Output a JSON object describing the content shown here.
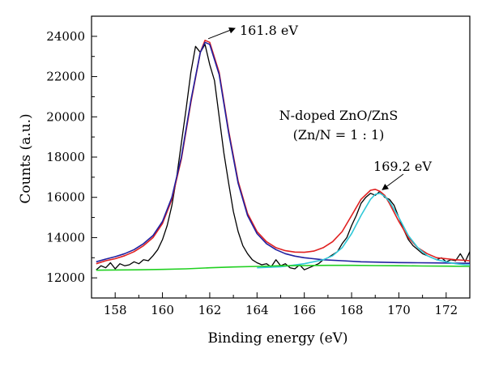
{
  "chart_data": {
    "type": "line",
    "xlabel": "Binding energy (eV)",
    "ylabel": "Counts (a.u.)",
    "xlim": [
      157,
      173
    ],
    "ylim": [
      11000,
      25000
    ],
    "x_ticks": [
      158,
      160,
      162,
      164,
      166,
      168,
      170,
      172
    ],
    "y_ticks": [
      12000,
      14000,
      16000,
      18000,
      20000,
      22000,
      24000
    ],
    "grid": false,
    "legend": "none",
    "text_annotations": {
      "sample_line1": "N-doped ZnO/ZnS",
      "sample_line2": "(Zn/N = 1 : 1)"
    },
    "peak_annotations": [
      {
        "label": "161.8 eV",
        "x": 161.8,
        "y": 23800
      },
      {
        "label": "169.2 eV",
        "x": 169.2,
        "y": 16300
      }
    ],
    "series": [
      {
        "color": "#000000",
        "x": [
          157.2,
          157.4,
          157.6,
          157.8,
          158.0,
          158.2,
          158.4,
          158.6,
          158.8,
          159.0,
          159.2,
          159.4,
          159.6,
          159.8,
          160.0,
          160.2,
          160.4,
          160.6,
          160.8,
          161.0,
          161.2,
          161.4,
          161.6,
          161.8,
          162.0,
          162.2,
          162.4,
          162.6,
          162.8,
          163.0,
          163.2,
          163.4,
          163.6,
          163.8,
          164.0,
          164.2,
          164.4,
          164.6,
          164.8,
          165.0,
          165.2,
          165.4,
          165.6,
          165.8,
          166.0,
          166.2,
          166.4,
          166.6,
          166.8,
          167.0,
          167.2,
          167.4,
          167.6,
          167.8,
          168.0,
          168.2,
          168.4,
          168.6,
          168.8,
          169.0,
          169.2,
          169.4,
          169.6,
          169.8,
          170.0,
          170.2,
          170.4,
          170.6,
          170.8,
          171.0,
          171.2,
          171.4,
          171.6,
          171.8,
          172.0,
          172.2,
          172.4,
          172.6,
          172.8,
          173.0
        ],
        "y": [
          12400,
          12600,
          12500,
          12750,
          12450,
          12700,
          12600,
          12650,
          12800,
          12700,
          12900,
          12850,
          13100,
          13400,
          13900,
          14600,
          15600,
          17000,
          18700,
          20400,
          22200,
          23500,
          23200,
          23600,
          22600,
          21800,
          20000,
          18200,
          16700,
          15300,
          14300,
          13600,
          13200,
          12900,
          12750,
          12650,
          12700,
          12550,
          12900,
          12600,
          12700,
          12500,
          12450,
          12650,
          12400,
          12500,
          12600,
          12700,
          12900,
          13000,
          13150,
          13300,
          13700,
          14000,
          14600,
          15100,
          15700,
          16000,
          16200,
          16100,
          16300,
          16000,
          15900,
          15600,
          15000,
          14400,
          13900,
          13600,
          13400,
          13200,
          13100,
          13000,
          12900,
          13000,
          12800,
          12900,
          12850,
          13200,
          12800,
          13300
        ]
      },
      {
        "color": "#e02020",
        "x": [
          157.2,
          157.6,
          158.0,
          158.4,
          158.8,
          159.2,
          159.6,
          160.0,
          160.4,
          160.8,
          161.2,
          161.6,
          161.8,
          162.0,
          162.4,
          162.8,
          163.2,
          163.6,
          164.0,
          164.4,
          164.8,
          165.2,
          165.6,
          166.0,
          166.4,
          166.8,
          167.2,
          167.6,
          168.0,
          168.4,
          168.8,
          169.0,
          169.2,
          169.4,
          169.6,
          170.0,
          170.4,
          170.8,
          171.2,
          171.6,
          172.0,
          172.4,
          172.8,
          173.0
        ],
        "y": [
          12700,
          12850,
          12950,
          13100,
          13300,
          13600,
          14000,
          14700,
          15900,
          17900,
          20700,
          23200,
          23800,
          23700,
          22200,
          19300,
          16800,
          15200,
          14300,
          13800,
          13500,
          13350,
          13280,
          13270,
          13330,
          13500,
          13800,
          14300,
          15100,
          15900,
          16350,
          16400,
          16300,
          16100,
          15700,
          14800,
          14000,
          13500,
          13200,
          13000,
          12950,
          12900,
          12870,
          12850
        ]
      },
      {
        "color": "#2020a0",
        "x": [
          157.2,
          157.6,
          158.0,
          158.4,
          158.8,
          159.2,
          159.6,
          160.0,
          160.4,
          160.8,
          161.2,
          161.6,
          161.8,
          162.0,
          162.4,
          162.8,
          163.2,
          163.6,
          164.0,
          164.4,
          164.8,
          165.2,
          165.6,
          166.0,
          166.8,
          167.6,
          168.4,
          169.2,
          170.0,
          170.8,
          171.6,
          172.4,
          173.0
        ],
        "y": [
          12800,
          12930,
          13050,
          13200,
          13400,
          13700,
          14100,
          14800,
          16000,
          18000,
          20800,
          23200,
          23700,
          23600,
          22100,
          19200,
          16700,
          15100,
          14200,
          13700,
          13400,
          13200,
          13080,
          13000,
          12900,
          12850,
          12800,
          12780,
          12760,
          12750,
          12740,
          12730,
          12720
        ]
      },
      {
        "color": "#30c8d8",
        "x": [
          164.0,
          165.0,
          166.0,
          166.8,
          167.2,
          167.6,
          168.0,
          168.4,
          168.8,
          169.0,
          169.2,
          169.4,
          169.6,
          170.0,
          170.4,
          170.8,
          171.2,
          171.6,
          172.0,
          172.4,
          172.8,
          173.0
        ],
        "y": [
          12500,
          12550,
          12700,
          12900,
          13100,
          13500,
          14200,
          15100,
          15900,
          16150,
          16200,
          16050,
          15800,
          15000,
          14100,
          13500,
          13100,
          12900,
          12800,
          12700,
          12650,
          12650
        ]
      },
      {
        "color": "#20d020",
        "x": [
          157.2,
          158.0,
          159.0,
          160.0,
          161.0,
          162.0,
          163.0,
          164.0,
          165.0,
          166.0,
          167.0,
          168.0,
          169.0,
          170.0,
          171.0,
          172.0,
          173.0
        ],
        "y": [
          12380,
          12390,
          12400,
          12420,
          12450,
          12500,
          12540,
          12570,
          12600,
          12610,
          12620,
          12620,
          12610,
          12600,
          12590,
          12580,
          12570
        ]
      }
    ]
  }
}
